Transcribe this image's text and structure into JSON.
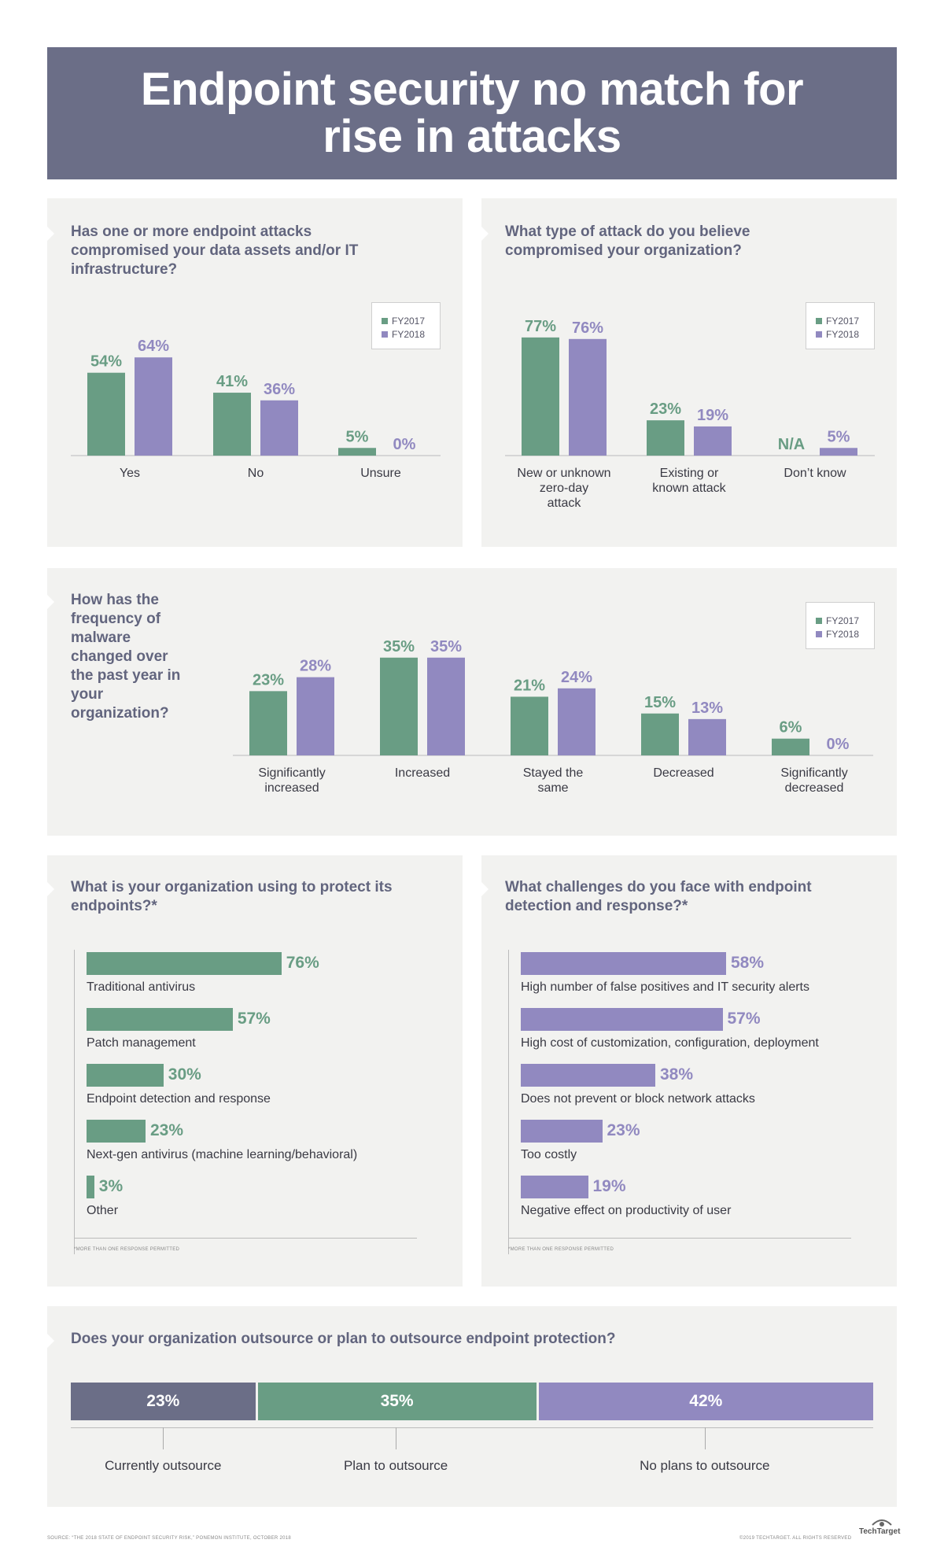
{
  "title": "Endpoint security no match for rise in attacks",
  "colors": {
    "fy2017": "#699d84",
    "fy2018": "#9189c0",
    "dark": "#6b6e87"
  },
  "legend": {
    "fy2017": "FY2017",
    "fy2018": "FY2018"
  },
  "chart_data": [
    {
      "type": "bar",
      "title": "Has one or more endpoint attacks compromised your data assets and/or IT infrastructure?",
      "categories": [
        "Yes",
        "No",
        "Unsure"
      ],
      "series": [
        {
          "name": "FY2017",
          "values": [
            54,
            41,
            5
          ],
          "labels": [
            "54%",
            "41%",
            "5%"
          ]
        },
        {
          "name": "FY2018",
          "values": [
            64,
            36,
            0
          ],
          "labels": [
            "64%",
            "36%",
            "0%"
          ]
        }
      ],
      "legend_position": "top-right"
    },
    {
      "type": "bar",
      "title": "What type of attack do you believe compromised your organization?",
      "categories": [
        "New or unknown zero-day attack",
        "Existing or known attack",
        "Don’t know"
      ],
      "series": [
        {
          "name": "FY2017",
          "values": [
            77,
            23,
            null
          ],
          "labels": [
            "77%",
            "23%",
            "N/A"
          ]
        },
        {
          "name": "FY2018",
          "values": [
            76,
            19,
            5
          ],
          "labels": [
            "76%",
            "19%",
            "5%"
          ]
        }
      ],
      "legend_position": "top-right"
    },
    {
      "type": "bar",
      "title": "How has the frequency of malware changed over the past year in your organization?",
      "categories": [
        "Significantly increased",
        "Increased",
        "Stayed the same",
        "Decreased",
        "Significantly decreased"
      ],
      "series": [
        {
          "name": "FY2017",
          "values": [
            23,
            35,
            21,
            15,
            6
          ],
          "labels": [
            "23%",
            "35%",
            "21%",
            "15%",
            "6%"
          ]
        },
        {
          "name": "FY2018",
          "values": [
            28,
            35,
            24,
            13,
            0
          ],
          "labels": [
            "28%",
            "35%",
            "24%",
            "13%",
            "0%"
          ]
        }
      ],
      "legend_position": "top-right"
    },
    {
      "type": "bar",
      "orientation": "horizontal",
      "title": "What is your organization using to protect its endpoints?*",
      "categories": [
        "Traditional antivirus",
        "Patch management",
        "Endpoint detection and response",
        "Next-gen antivirus (machine learning/behavioral)",
        "Other"
      ],
      "values": [
        76,
        57,
        30,
        23,
        3
      ],
      "labels": [
        "76%",
        "57%",
        "30%",
        "23%",
        "3%"
      ],
      "footnote": "*MORE THAN ONE RESPONSE PERMITTED"
    },
    {
      "type": "bar",
      "orientation": "horizontal",
      "title": "What challenges do you face with endpoint detection and response?*",
      "categories": [
        "High number of false positives and IT security alerts",
        "High cost of customization, configuration, deployment",
        "Does not prevent or block network attacks",
        "Too costly",
        "Negative effect on productivity of user"
      ],
      "values": [
        58,
        57,
        38,
        23,
        19
      ],
      "labels": [
        "58%",
        "57%",
        "38%",
        "23%",
        "19%"
      ],
      "footnote": "*MORE THAN ONE RESPONSE PERMITTED"
    },
    {
      "type": "bar",
      "orientation": "stacked-horizontal",
      "title": "Does your organization outsource or plan to outsource endpoint protection?",
      "categories": [
        "Currently outsource",
        "Plan to outsource",
        "No plans to outsource"
      ],
      "values": [
        23,
        35,
        42
      ],
      "labels": [
        "23%",
        "35%",
        "42%"
      ]
    }
  ],
  "footer": {
    "source": "SOURCE: “THE 2018 STATE OF ENDPOINT SECURITY RISK,” PONEMON INSTITUTE, OCTOBER 2018",
    "copyright": "©2019 TECHTARGET. ALL RIGHTS RESERVED",
    "brand": "TechTarget"
  }
}
